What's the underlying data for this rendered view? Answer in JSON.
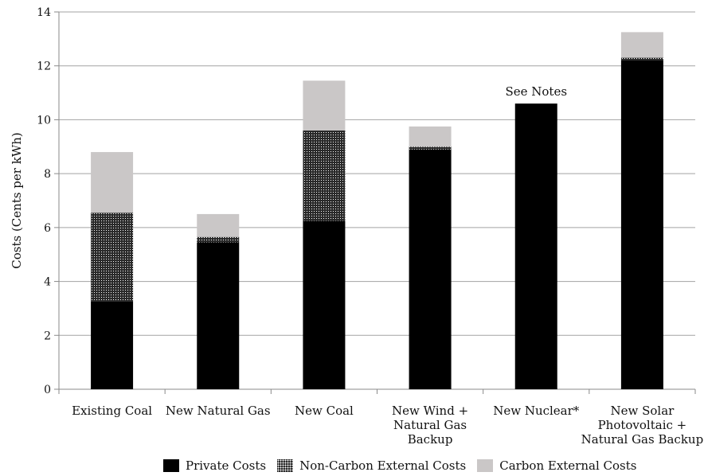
{
  "chart_data": {
    "type": "bar",
    "stacked": true,
    "categories": [
      [
        "Existing Coal"
      ],
      [
        "New Natural Gas"
      ],
      [
        "New Coal"
      ],
      [
        "New Wind +",
        "Natural Gas",
        "Backup"
      ],
      [
        "New Nuclear*"
      ],
      [
        "New Solar",
        "Photovoltaic +",
        "Natural Gas Backup"
      ]
    ],
    "series": [
      {
        "name": "Private Costs",
        "values": [
          3.25,
          5.45,
          6.25,
          8.9,
          10.6,
          12.2
        ],
        "color": "#000000"
      },
      {
        "name": "Non-Carbon External Costs",
        "values": [
          3.3,
          0.2,
          3.35,
          0.1,
          0,
          0.1
        ],
        "color": "#2a2a2a"
      },
      {
        "name": "Carbon External Costs",
        "values": [
          2.25,
          0.85,
          1.85,
          0.75,
          0,
          0.95
        ],
        "color": "#cac7c7"
      }
    ],
    "ylabel": "Costs (Cents per kWh)",
    "ylim": [
      0,
      14
    ],
    "yticks": [
      0,
      2,
      4,
      6,
      8,
      10,
      12,
      14
    ],
    "grid": true,
    "legend": "bottom",
    "annotations": [
      {
        "category_index": 4,
        "text": "See Notes"
      }
    ]
  }
}
